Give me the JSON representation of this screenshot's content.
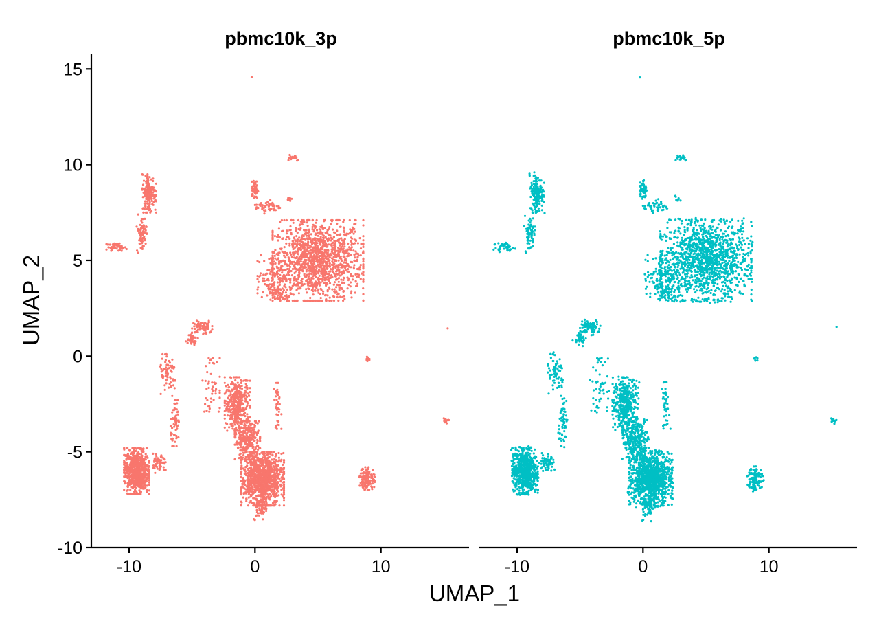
{
  "chart_data": {
    "type": "scatter",
    "xlabel": "UMAP_1",
    "ylabel": "UMAP_2",
    "xlim": [
      -13,
      17
    ],
    "ylim": [
      -10,
      15.8
    ],
    "x_ticks": [
      -10,
      0,
      10
    ],
    "y_ticks": [
      -10,
      -5,
      0,
      5,
      10,
      15
    ],
    "grid": false,
    "legend": "none",
    "panels": [
      {
        "title": "pbmc10k_3p",
        "color": "#F8766D"
      },
      {
        "title": "pbmc10k_5p",
        "color": "#00BFC4"
      }
    ],
    "clusters": [
      {
        "cx": 5.0,
        "cy": 5.0,
        "rx": 3.6,
        "ry": 2.1,
        "n": 1400,
        "label": "large cluster upper right"
      },
      {
        "cx": 1.5,
        "cy": 4.2,
        "rx": 1.3,
        "ry": 1.2,
        "n": 160
      },
      {
        "cx": 1.8,
        "cy": 3.2,
        "rx": 0.7,
        "ry": 0.35,
        "n": 40
      },
      {
        "cx": 0.0,
        "cy": 8.7,
        "rx": 0.25,
        "ry": 0.45,
        "n": 60
      },
      {
        "cx": 1.0,
        "cy": 7.8,
        "rx": 1.0,
        "ry": 0.35,
        "n": 50
      },
      {
        "cx": 3.0,
        "cy": 10.4,
        "rx": 0.6,
        "ry": 0.2,
        "n": 20
      },
      {
        "cx": 2.7,
        "cy": 8.2,
        "rx": 0.25,
        "ry": 0.15,
        "n": 10
      },
      {
        "cx": -8.4,
        "cy": 8.5,
        "rx": 0.55,
        "ry": 1.0,
        "n": 160
      },
      {
        "cx": -9.0,
        "cy": 6.4,
        "rx": 0.4,
        "ry": 1.0,
        "n": 70
      },
      {
        "cx": -11.0,
        "cy": 5.7,
        "rx": 0.8,
        "ry": 0.2,
        "n": 40
      },
      {
        "cx": -9.4,
        "cy": -6.0,
        "rx": 1.0,
        "ry": 1.2,
        "n": 700,
        "label": "cluster lower left"
      },
      {
        "cx": -7.6,
        "cy": -5.6,
        "rx": 0.5,
        "ry": 0.5,
        "n": 60
      },
      {
        "cx": -6.3,
        "cy": -3.5,
        "rx": 0.4,
        "ry": 1.2,
        "n": 60
      },
      {
        "cx": -6.9,
        "cy": -1.0,
        "rx": 0.7,
        "ry": 1.1,
        "n": 70
      },
      {
        "cx": -4.2,
        "cy": 1.5,
        "rx": 0.8,
        "ry": 0.35,
        "n": 80
      },
      {
        "cx": -5.0,
        "cy": 1.0,
        "rx": 0.5,
        "ry": 0.4,
        "n": 40
      },
      {
        "cx": -3.5,
        "cy": -1.5,
        "rx": 0.7,
        "ry": 1.4,
        "n": 50
      },
      {
        "cx": 0.6,
        "cy": -6.4,
        "rx": 1.7,
        "ry": 1.4,
        "n": 1100,
        "label": "cluster lower center"
      },
      {
        "cx": -1.4,
        "cy": -2.5,
        "rx": 1.0,
        "ry": 1.4,
        "n": 400
      },
      {
        "cx": -0.6,
        "cy": -4.4,
        "rx": 1.0,
        "ry": 1.0,
        "n": 300
      },
      {
        "cx": 0.4,
        "cy": -8.0,
        "rx": 0.5,
        "ry": 0.6,
        "n": 60
      },
      {
        "cx": 1.8,
        "cy": -2.6,
        "rx": 0.3,
        "ry": 1.2,
        "n": 40
      },
      {
        "cx": 8.9,
        "cy": -6.4,
        "rx": 0.6,
        "ry": 0.6,
        "n": 130
      },
      {
        "cx": 9.0,
        "cy": -0.1,
        "rx": 0.15,
        "ry": 0.2,
        "n": 8
      },
      {
        "cx": 15.2,
        "cy": -3.4,
        "rx": 0.25,
        "ry": 0.25,
        "n": 12
      },
      {
        "cx": 15.3,
        "cy": 1.5,
        "rx": 0.05,
        "ry": 0.05,
        "n": 1
      },
      {
        "cx": -0.3,
        "cy": 14.6,
        "rx": 0.05,
        "ry": 0.05,
        "n": 1
      }
    ]
  }
}
